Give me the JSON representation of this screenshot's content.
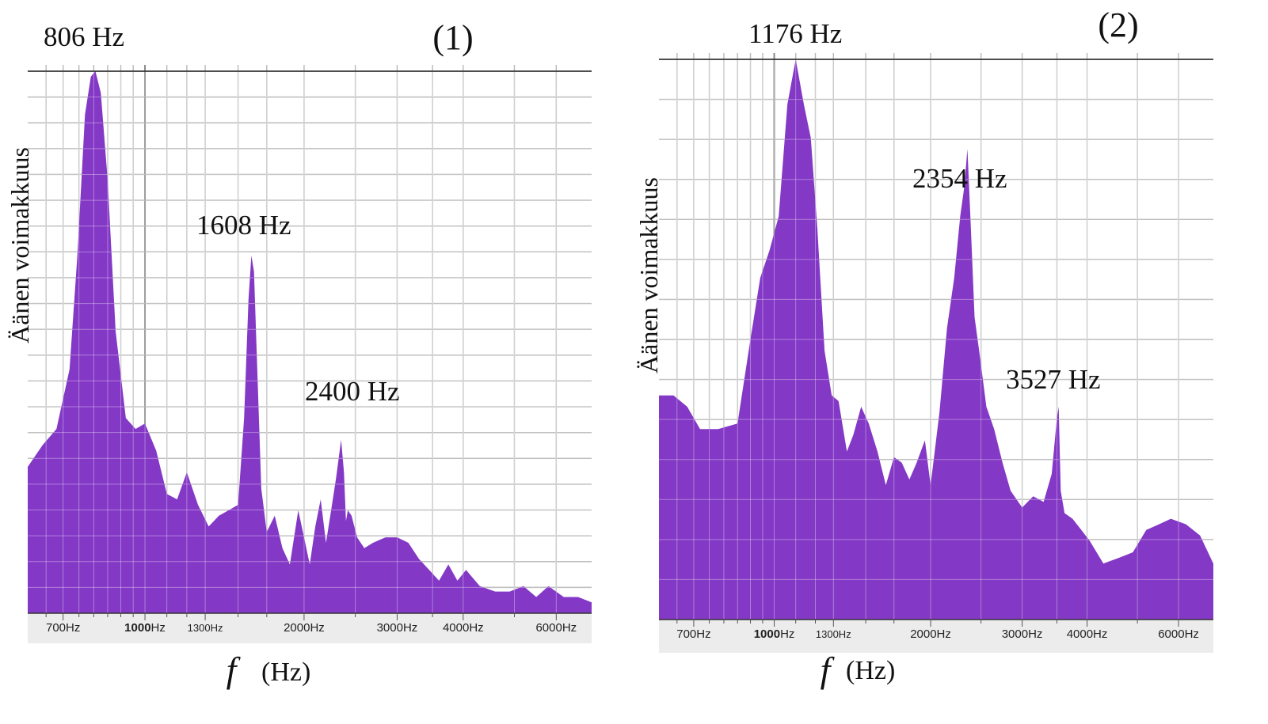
{
  "chart_data": [
    {
      "type": "area",
      "title": "(1)",
      "xlabel_symbol": "f",
      "xlabel_unit": "(Hz)",
      "ylabel": "Äänen voimakkuus",
      "x_scale": "log",
      "xlim": [
        600,
        7000
      ],
      "ylim": [
        0,
        1
      ],
      "grid": true,
      "fill_color": "#8438c6",
      "x_ticks": [
        {
          "value": 700,
          "label": "700Hz",
          "bold": ""
        },
        {
          "value": 1000,
          "label": "Hz",
          "bold": "1000"
        },
        {
          "value": 1300,
          "label": "1300Hz",
          "bold": ""
        },
        {
          "value": 2000,
          "label": "2000Hz",
          "bold": ""
        },
        {
          "value": 3000,
          "label": "3000Hz",
          "bold": ""
        },
        {
          "value": 4000,
          "label": "4000Hz",
          "bold": ""
        },
        {
          "value": 6000,
          "label": "6000Hz",
          "bold": ""
        }
      ],
      "annotations": [
        {
          "text": "806 Hz",
          "x": 806
        },
        {
          "text": "1608 Hz",
          "x": 1608
        },
        {
          "text": "2400 Hz",
          "x": 2400
        }
      ],
      "x": [
        600,
        640,
        680,
        720,
        745,
        770,
        790,
        806,
        825,
        850,
        880,
        920,
        960,
        1000,
        1050,
        1100,
        1150,
        1200,
        1260,
        1320,
        1380,
        1440,
        1500,
        1540,
        1570,
        1590,
        1608,
        1630,
        1660,
        1700,
        1760,
        1820,
        1880,
        1950,
        2000,
        2050,
        2100,
        2150,
        2200,
        2250,
        2300,
        2350,
        2380,
        2400,
        2420,
        2460,
        2520,
        2600,
        2700,
        2850,
        3000,
        3150,
        3300,
        3450,
        3600,
        3750,
        3900,
        4050,
        4300,
        4600,
        4900,
        5200,
        5500,
        5800,
        6200,
        6600,
        7000
      ],
      "y": [
        0.27,
        0.31,
        0.34,
        0.45,
        0.66,
        0.92,
        0.99,
        1.0,
        0.96,
        0.8,
        0.52,
        0.36,
        0.34,
        0.35,
        0.3,
        0.22,
        0.21,
        0.26,
        0.2,
        0.16,
        0.18,
        0.19,
        0.2,
        0.36,
        0.58,
        0.66,
        0.63,
        0.46,
        0.23,
        0.15,
        0.18,
        0.12,
        0.09,
        0.19,
        0.14,
        0.09,
        0.16,
        0.21,
        0.13,
        0.19,
        0.25,
        0.32,
        0.26,
        0.17,
        0.19,
        0.18,
        0.14,
        0.12,
        0.13,
        0.14,
        0.14,
        0.13,
        0.1,
        0.08,
        0.06,
        0.09,
        0.06,
        0.08,
        0.05,
        0.04,
        0.04,
        0.05,
        0.03,
        0.05,
        0.03,
        0.03,
        0.02
      ]
    },
    {
      "type": "area",
      "title": "(2)",
      "xlabel_symbol": "f",
      "xlabel_unit": "(Hz)",
      "ylabel": "Äänen voimakkuus",
      "x_scale": "log",
      "xlim": [
        600,
        7000
      ],
      "ylim": [
        0,
        1
      ],
      "grid": true,
      "fill_color": "#8438c6",
      "x_ticks": [
        {
          "value": 700,
          "label": "700Hz",
          "bold": ""
        },
        {
          "value": 1000,
          "label": "Hz",
          "bold": "1000"
        },
        {
          "value": 1300,
          "label": "1300Hz",
          "bold": ""
        },
        {
          "value": 2000,
          "label": "2000Hz",
          "bold": ""
        },
        {
          "value": 3000,
          "label": "3000Hz",
          "bold": ""
        },
        {
          "value": 4000,
          "label": "4000Hz",
          "bold": ""
        },
        {
          "value": 6000,
          "label": "6000Hz",
          "bold": ""
        }
      ],
      "annotations": [
        {
          "text": "1176 Hz",
          "x": 1176
        },
        {
          "text": "2354 Hz",
          "x": 2354
        },
        {
          "text": "3527 Hz",
          "x": 3527
        }
      ],
      "x": [
        600,
        640,
        680,
        720,
        780,
        850,
        900,
        940,
        980,
        1020,
        1060,
        1100,
        1140,
        1176,
        1210,
        1250,
        1290,
        1330,
        1380,
        1420,
        1470,
        1520,
        1580,
        1640,
        1700,
        1760,
        1820,
        1880,
        1950,
        2000,
        2080,
        2150,
        2220,
        2280,
        2320,
        2354,
        2390,
        2430,
        2480,
        2560,
        2650,
        2750,
        2850,
        3000,
        3150,
        3300,
        3420,
        3500,
        3527,
        3560,
        3620,
        3750,
        3900,
        4050,
        4300,
        4600,
        4900,
        5200,
        5500,
        5800,
        6200,
        6600,
        7000
      ],
      "y": [
        0.4,
        0.4,
        0.38,
        0.34,
        0.34,
        0.35,
        0.5,
        0.61,
        0.66,
        0.72,
        0.92,
        1.0,
        0.92,
        0.86,
        0.7,
        0.48,
        0.4,
        0.39,
        0.3,
        0.33,
        0.38,
        0.35,
        0.3,
        0.24,
        0.29,
        0.28,
        0.25,
        0.28,
        0.32,
        0.24,
        0.37,
        0.52,
        0.61,
        0.72,
        0.77,
        0.84,
        0.7,
        0.54,
        0.48,
        0.38,
        0.34,
        0.28,
        0.23,
        0.2,
        0.22,
        0.21,
        0.26,
        0.36,
        0.38,
        0.23,
        0.19,
        0.18,
        0.16,
        0.14,
        0.1,
        0.11,
        0.12,
        0.16,
        0.17,
        0.18,
        0.17,
        0.15,
        0.1
      ]
    }
  ]
}
